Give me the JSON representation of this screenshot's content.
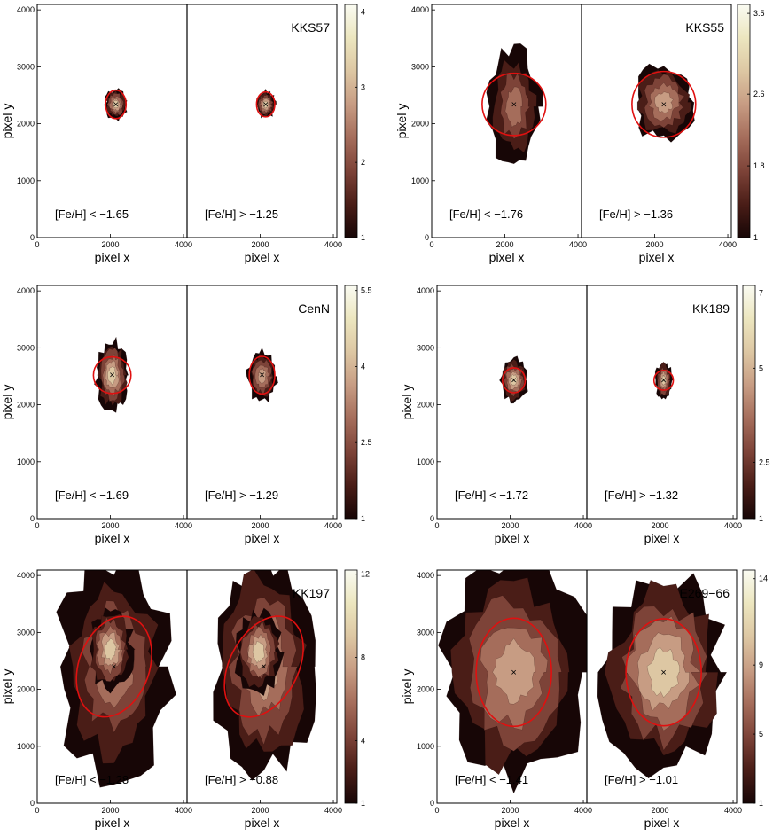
{
  "colors": {
    "cmap": [
      "#170606",
      "#4a1d17",
      "#7d4338",
      "#a56d5b",
      "#c79c83",
      "#ddc7a3",
      "#ece6bf",
      "#fafbf2"
    ],
    "ellipse": "#e01010",
    "center_marker": "#000000"
  },
  "chart_data": [
    {
      "type": "heatmap",
      "galaxy": "KKS57",
      "xlabel": "pixel x",
      "ylabel": "pixel y",
      "xlim": [
        0,
        4096
      ],
      "ylim": [
        0,
        4096
      ],
      "xticks": [
        0,
        2000,
        4000
      ],
      "yticks": [
        0,
        1000,
        2000,
        3000,
        4000
      ],
      "colorbar": {
        "ticks": [
          "1",
          "2",
          "3",
          "4"
        ],
        "min": 1,
        "max": 4.1
      },
      "panels": [
        {
          "label": "[Fe/H] < −1.65",
          "center": [
            2150,
            2340
          ],
          "ellipse": {
            "a": 280,
            "b": 250,
            "angle": 0
          },
          "blobs": [
            [
              2150,
              2340,
              290,
              260,
              3.3
            ]
          ]
        },
        {
          "label": "[Fe/H] > −1.25",
          "center": [
            2150,
            2340
          ],
          "ellipse": {
            "a": 250,
            "b": 220,
            "angle": 0
          },
          "blobs": [
            [
              2150,
              2340,
              260,
              230,
              3.0
            ]
          ]
        }
      ]
    },
    {
      "type": "heatmap",
      "galaxy": "KKS55",
      "xlabel": "pixel x",
      "ylabel": "pixel y",
      "xlim": [
        0,
        4096
      ],
      "ylim": [
        0,
        4096
      ],
      "xticks": [
        0,
        2000,
        4000
      ],
      "yticks": [
        0,
        1000,
        2000,
        3000,
        4000
      ],
      "colorbar": {
        "ticks": [
          "1",
          "1.8",
          "2.6",
          "3.5"
        ],
        "min": 1,
        "max": 3.6
      },
      "panels": [
        {
          "label": "[Fe/H] < −1.76",
          "center": [
            2250,
            2340
          ],
          "ellipse": {
            "a": 850,
            "b": 560,
            "angle": 90
          },
          "blobs": [
            [
              2250,
              2300,
              700,
              1000,
              2.3
            ]
          ]
        },
        {
          "label": "[Fe/H] > −1.36",
          "center": [
            2250,
            2340
          ],
          "ellipse": {
            "a": 900,
            "b": 560,
            "angle": 90
          },
          "blobs": [
            [
              2250,
              2380,
              800,
              650,
              2.4
            ]
          ]
        }
      ]
    },
    {
      "type": "heatmap",
      "galaxy": "CenN",
      "xlabel": "pixel x",
      "ylabel": "pixel y",
      "xlim": [
        0,
        4096
      ],
      "ylim": [
        0,
        4096
      ],
      "xticks": [
        0,
        2000,
        4000
      ],
      "yticks": [
        0,
        1000,
        2000,
        3000,
        4000
      ],
      "colorbar": {
        "ticks": [
          "1",
          "2.5",
          "4",
          "5.5"
        ],
        "min": 1,
        "max": 5.6
      },
      "panels": [
        {
          "label": "[Fe/H] < −1.69",
          "center": [
            2050,
            2520
          ],
          "ellipse": {
            "a": 500,
            "b": 330,
            "angle": 90
          },
          "blobs": [
            [
              2050,
              2520,
              430,
              600,
              4.0
            ]
          ]
        },
        {
          "label": "[Fe/H] > −1.29",
          "center": [
            2050,
            2520
          ],
          "ellipse": {
            "a": 350,
            "b": 330,
            "angle": 0
          },
          "blobs": [
            [
              2050,
              2500,
              380,
              440,
              3.6
            ]
          ]
        }
      ]
    },
    {
      "type": "heatmap",
      "galaxy": "KK189",
      "xlabel": "pixel x",
      "ylabel": "pixel y",
      "xlim": [
        0,
        4096
      ],
      "ylim": [
        0,
        4096
      ],
      "xticks": [
        0,
        2000,
        4000
      ],
      "yticks": [
        0,
        1000,
        2000,
        3000,
        4000
      ],
      "colorbar": {
        "ticks": [
          "1",
          "2.5",
          "5",
          "7"
        ],
        "min": 1,
        "max": 7.2
      },
      "panels": [
        {
          "label": "[Fe/H] < −1.72",
          "center": [
            2100,
            2430
          ],
          "ellipse": {
            "a": 340,
            "b": 200,
            "angle": 90
          },
          "blobs": [
            [
              2100,
              2430,
              360,
              380,
              5.2
            ]
          ]
        },
        {
          "label": "[Fe/H] > −1.32",
          "center": [
            2100,
            2430
          ],
          "ellipse": {
            "a": 270,
            "b": 170,
            "angle": 90
          },
          "blobs": [
            [
              2100,
              2430,
              220,
              320,
              5.0
            ]
          ]
        }
      ]
    },
    {
      "type": "heatmap",
      "galaxy": "KK197",
      "xlabel": "pixel x",
      "ylabel": "pixel y",
      "xlim": [
        0,
        4096
      ],
      "ylim": [
        0,
        4096
      ],
      "xticks": [
        0,
        2000,
        4000
      ],
      "yticks": [
        0,
        1000,
        2000,
        3000,
        4000
      ],
      "colorbar": {
        "ticks": [
          "1",
          "4",
          "8",
          "12"
        ],
        "min": 1,
        "max": 12.2
      },
      "panels": [
        {
          "label": "[Fe/H] < −1.28",
          "center": [
            2100,
            2400
          ],
          "ellipse": {
            "a": 1420,
            "b": 620,
            "angle": 70
          },
          "blobs": [
            [
              2100,
              2400,
              1500,
              1900,
              6.5
            ],
            [
              2000,
              2700,
              600,
              700,
              8.5
            ]
          ]
        },
        {
          "label": "[Fe/H] > −0.88",
          "center": [
            2100,
            2400
          ],
          "ellipse": {
            "a": 1480,
            "b": 600,
            "angle": 62
          },
          "blobs": [
            [
              2100,
              2400,
              1300,
              1850,
              7.5
            ],
            [
              1950,
              2650,
              600,
              700,
              9.5
            ]
          ]
        }
      ]
    },
    {
      "type": "heatmap",
      "galaxy": "E269−66",
      "xlabel": "pixel x",
      "ylabel": "pixel y",
      "xlim": [
        0,
        4096
      ],
      "ylim": [
        0,
        4096
      ],
      "xticks": [
        0,
        2000,
        4000
      ],
      "yticks": [
        0,
        1000,
        2000,
        3000,
        4000
      ],
      "colorbar": {
        "ticks": [
          "1",
          "5",
          "9",
          "14"
        ],
        "min": 1,
        "max": 14.5
      },
      "panels": [
        {
          "label": "[Fe/H] < −1.41",
          "center": [
            2100,
            2300
          ],
          "ellipse": {
            "a": 1030,
            "b": 950,
            "angle": 0
          },
          "blobs": [
            [
              2100,
              2300,
              1900,
              1900,
              8.0
            ]
          ]
        },
        {
          "label": "[Fe/H] > −1.01",
          "center": [
            2100,
            2300
          ],
          "ellipse": {
            "a": 1030,
            "b": 940,
            "angle": 0
          },
          "blobs": [
            [
              2100,
              2300,
              1600,
              1650,
              10.5
            ]
          ]
        }
      ]
    }
  ]
}
